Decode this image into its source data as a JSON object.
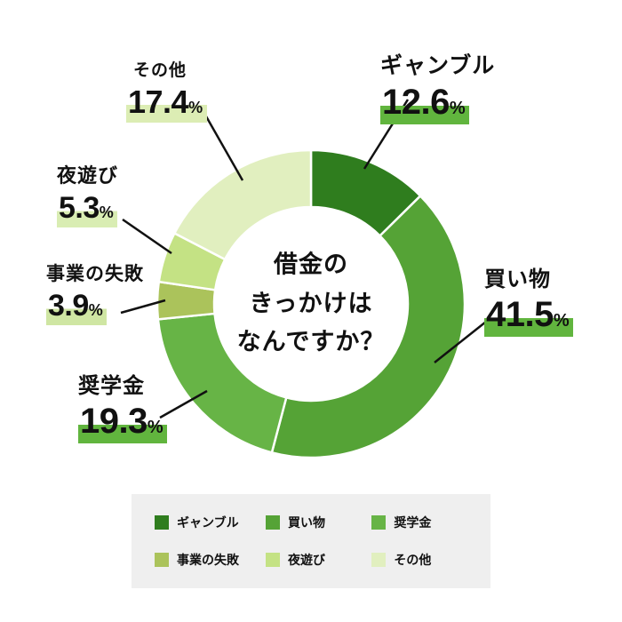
{
  "chart_data": {
    "type": "pie",
    "variant": "donut",
    "title": "借金のきっかけはなんですか？",
    "center_title_lines": [
      "借金の",
      "きっかけは",
      "なんですか？"
    ],
    "percent_sign": "%",
    "start_angle_deg": 0,
    "direction": "clockwise",
    "slices": [
      {
        "label": "ギャンブル",
        "value": 12.6,
        "color": "#2f7d1e",
        "highlight": "#61b53e"
      },
      {
        "label": "買い物",
        "value": 41.5,
        "color": "#55a336",
        "highlight": "#61b53e"
      },
      {
        "label": "奨学金",
        "value": 19.3,
        "color": "#67b446",
        "highlight": "#61b53e"
      },
      {
        "label": "事業の失敗",
        "value": 3.9,
        "color": "#abc35b",
        "highlight": "#cfe6a3"
      },
      {
        "label": "夜遊び",
        "value": 5.3,
        "color": "#c4e284",
        "highlight": "#d9edb3"
      },
      {
        "label": "その他",
        "value": 17.4,
        "color": "#e1efbf",
        "highlight": "#dcedb4"
      }
    ],
    "legend": {
      "position": "bottom",
      "labels": [
        "ギャンブル",
        "買い物",
        "奨学金",
        "事業の失敗",
        "夜遊び",
        "その他"
      ]
    }
  }
}
